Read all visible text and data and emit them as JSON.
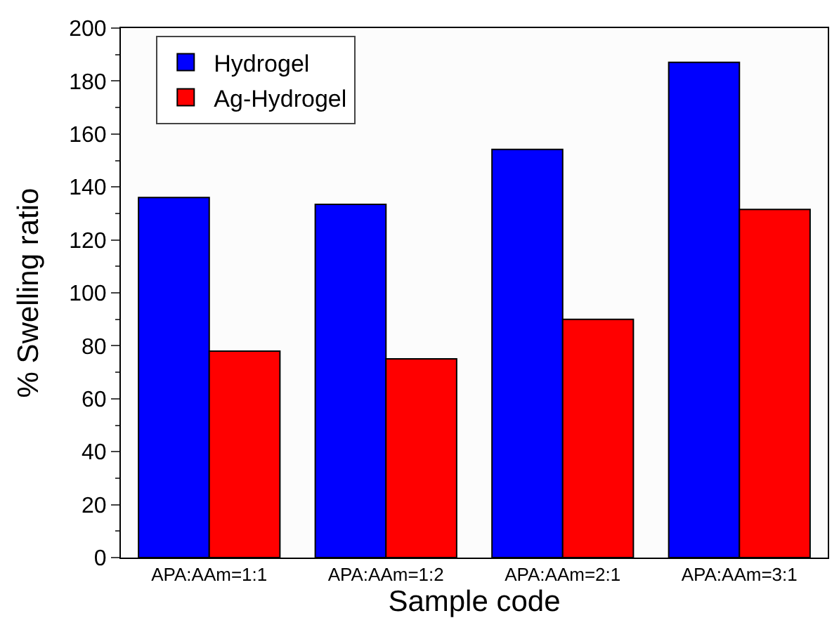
{
  "chart_data": {
    "type": "bar",
    "xlabel": "Sample code",
    "ylabel": "% Swelling ratio",
    "categories": [
      "APA:AAm=1:1",
      "APA:AAm=1:2",
      "APA:AAm=2:1",
      "APA:AAm=3:1"
    ],
    "series": [
      {
        "name": "Hydrogel",
        "color": "#0000ff",
        "values": [
          136,
          133.4,
          154.2,
          187.1
        ]
      },
      {
        "name": "Ag-Hydrogel",
        "color": "#ff0000",
        "values": [
          78,
          75.1,
          90,
          131.5
        ]
      }
    ],
    "ylim": [
      0,
      200
    ],
    "yticks": [
      0,
      20,
      40,
      60,
      80,
      100,
      120,
      140,
      160,
      180,
      200
    ],
    "legend": "top left"
  }
}
